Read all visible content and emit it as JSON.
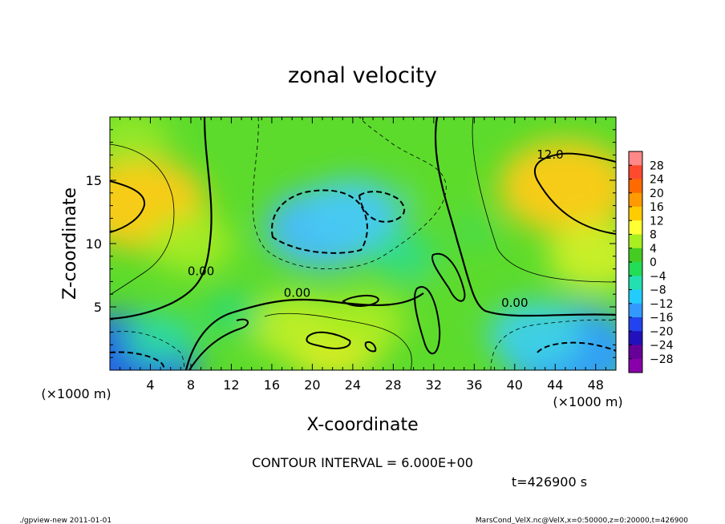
{
  "chart_data": {
    "type": "heatmap",
    "title": "zonal velocity",
    "xlabel": "X-coordinate",
    "ylabel": "Z-coordinate",
    "x_unit": "(×1000 m)",
    "y_unit": "(×1000 m)",
    "xlim": [
      0,
      50
    ],
    "ylim": [
      0,
      20
    ],
    "x_ticks": [
      4,
      8,
      12,
      16,
      20,
      24,
      28,
      32,
      36,
      40,
      44,
      48
    ],
    "y_ticks": [
      5,
      10,
      15
    ],
    "colorbar": {
      "labels": [
        28,
        24,
        20,
        16,
        12,
        8,
        4,
        0,
        -4,
        -8,
        -12,
        -16,
        -20,
        -24,
        -28
      ],
      "colors": [
        "#ff8888",
        "#ff4a30",
        "#ff6a00",
        "#ff9a00",
        "#ffcc00",
        "#ffff33",
        "#a8ee20",
        "#44cc22",
        "#22dd55",
        "#22e0b0",
        "#22ccff",
        "#3399ff",
        "#2244ee",
        "#2211bb",
        "#660099",
        "#8800aa"
      ]
    },
    "contour_labels": [
      {
        "text": "12.0",
        "x": 43.5,
        "y": 16.7
      },
      {
        "text": "0.00",
        "x": 9.0,
        "y": 7.5
      },
      {
        "text": "0.00",
        "x": 18.5,
        "y": 5.8
      },
      {
        "text": "0.00",
        "x": 40.0,
        "y": 5.0
      }
    ],
    "fields": [
      {
        "x": 3,
        "y": 13.2,
        "value": 14
      },
      {
        "x": 45,
        "y": 14.5,
        "value": 14
      },
      {
        "x": 21,
        "y": 11.2,
        "value": -11
      },
      {
        "x": 24,
        "y": 12.3,
        "value": -9
      },
      {
        "x": 22,
        "y": 2.5,
        "value": 10
      },
      {
        "x": 18,
        "y": 3.5,
        "value": 7
      },
      {
        "x": 25,
        "y": 3.8,
        "value": 6
      },
      {
        "x": 45.5,
        "y": 1.5,
        "value": -14
      },
      {
        "x": 42,
        "y": 2.8,
        "value": -8
      },
      {
        "x": 1.5,
        "y": 0.5,
        "value": -18
      },
      {
        "x": 5,
        "y": 2.5,
        "value": -4
      },
      {
        "x": 2,
        "y": 18.5,
        "value": 5
      },
      {
        "x": 48,
        "y": 9,
        "value": 8
      },
      {
        "x": 8,
        "y": 10,
        "value": 6
      },
      {
        "x": 29,
        "y": 9,
        "value": -3
      },
      {
        "x": 32.5,
        "y": 14,
        "value": 2
      },
      {
        "x": 31,
        "y": 5.5,
        "value": 2
      },
      {
        "x": 12,
        "y": 4.5,
        "value": -2
      },
      {
        "x": 36,
        "y": 11,
        "value": 0
      }
    ]
  },
  "contour_interval": "CONTOUR INTERVAL = 6.000E+00",
  "time_label": "t=426900 s",
  "footer": {
    "left": "./gpview-new   2011-01-01",
    "right": "MarsCond_VelX.nc@VelX,x=0:50000,z=0:20000,t=426900"
  }
}
